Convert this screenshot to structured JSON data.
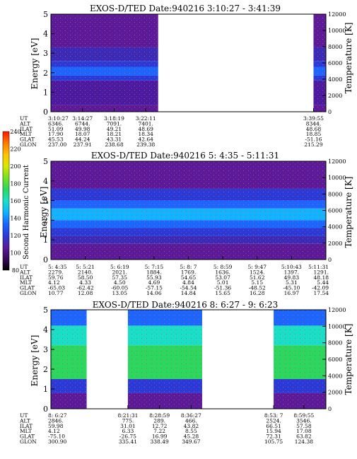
{
  "figure": {
    "colorbar": {
      "label": "Second Harmonic Current",
      "ticks": [
        80,
        100,
        120,
        140,
        160,
        180,
        200,
        220,
        240
      ],
      "colors": [
        "#000000",
        "#3a0a5a",
        "#5a1a9a",
        "#2a3ad8",
        "#1a66ff",
        "#10b4ff",
        "#18e0c8",
        "#2ad860",
        "#7ae020",
        "#d8e800",
        "#ffc400",
        "#ff7a00",
        "#ff1a00"
      ]
    }
  },
  "chart_data": [
    {
      "type": "heatmap",
      "title": "EXOS-D/TED   Date:940216  3:10:27 - 3:41:39",
      "ylabel": "Energy [eV]",
      "y2label": "Temperature [K]",
      "ylim": [
        0,
        5
      ],
      "y2lim": [
        0,
        12000
      ],
      "yticks": [
        0,
        1,
        2,
        3,
        4,
        5
      ],
      "y2ticks": [
        0,
        2000,
        4000,
        6000,
        8000,
        10000,
        12000
      ],
      "data_segments": [
        [
          0.0,
          0.39
        ],
        [
          0.955,
          1.0
        ]
      ],
      "bands": [
        {
          "ylo": 0.0,
          "yhi": 0.35,
          "color": "#5a1a9a"
        },
        {
          "ylo": 0.35,
          "yhi": 1.6,
          "color": "#4a1aa0"
        },
        {
          "ylo": 1.6,
          "yhi": 1.85,
          "color": "#2a3ad8"
        },
        {
          "ylo": 1.85,
          "yhi": 2.3,
          "color": "#1a66ff"
        },
        {
          "ylo": 2.3,
          "yhi": 2.6,
          "color": "#2a3ad8"
        },
        {
          "ylo": 2.6,
          "yhi": 3.3,
          "color": "#3a2ab8"
        },
        {
          "ylo": 3.3,
          "yhi": 5.0,
          "color": "#5a1a9a"
        }
      ],
      "row_labels": [
        "UT",
        "ALT",
        "ILAT",
        "MLT",
        "GLAT",
        "GLON"
      ],
      "columns": [
        {
          "pos": 0.0,
          "values": [
            "3:10:27",
            "6346.",
            "51.09",
            "17.90",
            "45.53",
            "237.00"
          ]
        },
        {
          "pos": 0.115,
          "values": [
            "3:14:27",
            "6744.",
            "49.98",
            "18.07",
            "44.24",
            "237.91"
          ]
        },
        {
          "pos": 0.23,
          "values": [
            "3:18:19",
            "7091.",
            "49.21",
            "18.21",
            "43.31",
            "238.68"
          ]
        },
        {
          "pos": 0.345,
          "values": [
            "3:22:11",
            "7401.",
            "48.69",
            "18.34",
            "42.64",
            "239.38"
          ]
        },
        {
          "pos": 0.955,
          "values": [
            "3:39:55",
            "8344.",
            "48.68",
            "18.85",
            "-51.16",
            "215.29"
          ]
        }
      ]
    },
    {
      "type": "heatmap",
      "title": "EXOS-D/TED   Date:940216  5: 4:35 - 5:11:31",
      "ylabel": "Energy [eV]",
      "y2label": "Temperature [K]",
      "ylim": [
        0,
        5
      ],
      "y2lim": [
        0,
        12000
      ],
      "yticks": [
        0,
        1,
        2,
        3,
        4,
        5
      ],
      "y2ticks": [
        0,
        2000,
        4000,
        6000,
        8000,
        10000,
        12000
      ],
      "data_segments": [
        [
          0.0,
          1.0
        ]
      ],
      "bands": [
        {
          "ylo": 0.0,
          "yhi": 0.8,
          "color": "#5a1a9a"
        },
        {
          "ylo": 0.8,
          "yhi": 1.2,
          "color": "#3a2ab8"
        },
        {
          "ylo": 1.2,
          "yhi": 1.6,
          "color": "#2a3ad8"
        },
        {
          "ylo": 1.6,
          "yhi": 2.0,
          "color": "#1a66ff"
        },
        {
          "ylo": 2.0,
          "yhi": 2.6,
          "color": "#10b4ff"
        },
        {
          "ylo": 2.6,
          "yhi": 3.0,
          "color": "#1a66ff"
        },
        {
          "ylo": 3.0,
          "yhi": 3.6,
          "color": "#2a3ad8"
        },
        {
          "ylo": 3.6,
          "yhi": 5.0,
          "color": "#5a1a9a"
        }
      ],
      "row_labels": [
        "UT",
        "ALT",
        "ILAT",
        "MLT",
        "GLAT",
        "GLON"
      ],
      "columns": [
        {
          "pos": 0.0,
          "values": [
            "5: 4:35",
            "2279.",
            "59.76",
            "4.12",
            "-65.03",
            "10.77"
          ]
        },
        {
          "pos": 0.125,
          "values": [
            "5: 5:21",
            "2140.",
            "58.50",
            "4.33",
            "-62.42",
            "12.08"
          ]
        },
        {
          "pos": 0.25,
          "values": [
            "5: 6:19",
            "2021.",
            "57.35",
            "4.50",
            "-60.05",
            "13.05"
          ]
        },
        {
          "pos": 0.375,
          "values": [
            "5: 7:15",
            "1884.",
            "55.93",
            "4.69",
            "-57.15",
            "14.06"
          ]
        },
        {
          "pos": 0.5,
          "values": [
            "5: 8: 7",
            "1769.",
            "54.65",
            "4.84",
            "-54.54",
            "14.84"
          ]
        },
        {
          "pos": 0.625,
          "values": [
            "5: 8:59",
            "1636.",
            "53.07",
            "5.01",
            "-51.36",
            "15.65"
          ]
        },
        {
          "pos": 0.75,
          "values": [
            "5: 9:47",
            "1524.",
            "51.62",
            "5.15",
            "-48.52",
            "16.28"
          ]
        },
        {
          "pos": 0.875,
          "values": [
            "5:10:43",
            "1397.",
            "49.83",
            "5.31",
            "-45.10",
            "16.97"
          ]
        },
        {
          "pos": 1.0,
          "values": [
            "5:11:31",
            "1291.",
            "48.18",
            "5.44",
            "-42.09",
            "17.54"
          ]
        }
      ]
    },
    {
      "type": "heatmap",
      "title": "EXOS-D/TED   Date:940216  8: 6:27 - 9: 6:23",
      "ylabel": "Energy [eV]",
      "y2label": "Temperature [K]",
      "ylim": [
        0,
        5
      ],
      "y2lim": [
        0,
        12000
      ],
      "yticks": [
        0,
        1,
        2,
        3,
        4,
        5
      ],
      "y2ticks": [
        0,
        2000,
        4000,
        6000,
        8000,
        10000,
        12000
      ],
      "data_segments": [
        [
          0.0,
          0.13
        ],
        [
          0.28,
          0.55
        ],
        [
          0.81,
          1.0
        ]
      ],
      "bands": [
        {
          "ylo": 0.0,
          "yhi": 0.8,
          "color": "#5a1a9a"
        },
        {
          "ylo": 0.8,
          "yhi": 1.5,
          "color": "#2a3ad8"
        },
        {
          "ylo": 1.5,
          "yhi": 3.2,
          "color": "#2ad860"
        },
        {
          "ylo": 3.2,
          "yhi": 4.2,
          "color": "#18e0c8"
        },
        {
          "ylo": 4.2,
          "yhi": 5.0,
          "color": "#1a66ff"
        }
      ],
      "row_labels": [
        "UT",
        "ALT",
        "ILAT",
        "MLT",
        "GLAT",
        "GLON"
      ],
      "columns": [
        {
          "pos": 0.0,
          "values": [
            "8: 6:27",
            "2846.",
            "59.98",
            "4.12",
            "-75.10",
            "300.90"
          ]
        },
        {
          "pos": 0.28,
          "values": [
            "8:21:31",
            "775.",
            "31.01",
            "6.33",
            "-26.75",
            "335.41"
          ]
        },
        {
          "pos": 0.395,
          "values": [
            "8:28:59",
            "289.",
            "12.72",
            "7.22",
            "16.99",
            "338.49"
          ]
        },
        {
          "pos": 0.51,
          "values": [
            "8:36:27",
            "466.",
            "43.82",
            "8.55",
            "45.28",
            "349.67"
          ]
        },
        {
          "pos": 0.81,
          "values": [
            "8:53: 7",
            "2524.",
            "66.51",
            "15.94",
            "72.31",
            "105.75"
          ]
        },
        {
          "pos": 0.92,
          "values": [
            "8:59:55",
            "3546.",
            "57.58",
            "17.08",
            "63.82",
            "124.38"
          ]
        }
      ]
    }
  ]
}
